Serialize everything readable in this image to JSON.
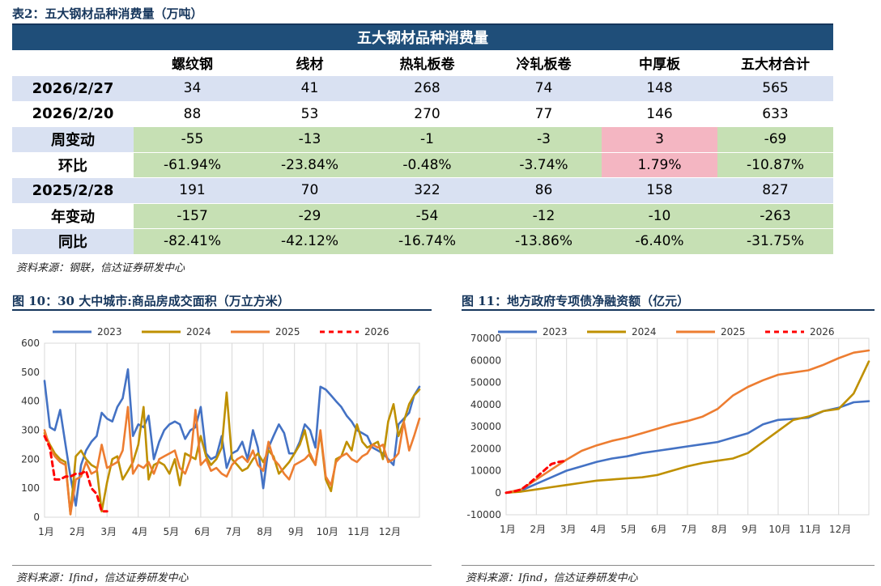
{
  "table": {
    "caption": "表2：五大钢材品种消费量（万吨）",
    "header": "五大钢材品种消费量",
    "columns": [
      "",
      "螺纹钢",
      "线材",
      "热轧板卷",
      "冷轧板卷",
      "中厚板",
      "五大材合计"
    ],
    "rows": [
      {
        "label": "2026/2/27",
        "values": [
          "34",
          "41",
          "268",
          "74",
          "148",
          "565"
        ],
        "fills": [
          "blue",
          "blue",
          "blue",
          "blue",
          "blue",
          "blue",
          "blue"
        ]
      },
      {
        "label": "2026/2/20",
        "values": [
          "88",
          "53",
          "270",
          "77",
          "146",
          "633"
        ],
        "fills": [
          "white",
          "white",
          "white",
          "white",
          "white",
          "white",
          "white"
        ]
      },
      {
        "label": "周变动",
        "values": [
          "-55",
          "-13",
          "-1",
          "-3",
          "3",
          "-69"
        ],
        "fills": [
          "blue",
          "green",
          "green",
          "green",
          "green",
          "pink",
          "green"
        ]
      },
      {
        "label": "环比",
        "values": [
          "-61.94%",
          "-23.84%",
          "-0.48%",
          "-3.74%",
          "1.79%",
          "-10.87%"
        ],
        "fills": [
          "white",
          "green",
          "green",
          "green",
          "green",
          "pink",
          "green"
        ]
      },
      {
        "label": "2025/2/28",
        "values": [
          "191",
          "70",
          "322",
          "86",
          "158",
          "827"
        ],
        "fills": [
          "blue",
          "blue",
          "blue",
          "blue",
          "blue",
          "blue",
          "blue"
        ]
      },
      {
        "label": "年变动",
        "values": [
          "-157",
          "-29",
          "-54",
          "-12",
          "-10",
          "-263"
        ],
        "fills": [
          "white",
          "green",
          "green",
          "green",
          "green",
          "green",
          "green"
        ]
      },
      {
        "label": "同比",
        "values": [
          "-82.41%",
          "-42.12%",
          "-16.74%",
          "-13.86%",
          "-6.40%",
          "-31.75%"
        ],
        "fills": [
          "blue",
          "green",
          "green",
          "green",
          "green",
          "green",
          "green"
        ]
      }
    ],
    "source": "资料来源：钢联，信达证券研发中心"
  },
  "fig10": {
    "caption": "图 10：30 大中城市:商品房成交面积（万立方米）",
    "source": "资料来源：Ifind，信达证券研发中心"
  },
  "fig11": {
    "caption": "图 11：地方政府专项债净融资额（亿元）",
    "source": "资料来源：Ifind，信达证券研发中心"
  },
  "chart_data": [
    {
      "type": "line",
      "title": "",
      "x_labels": [
        "1月",
        "2月",
        "3月",
        "4月",
        "5月",
        "6月",
        "7月",
        "8月",
        "9月",
        "10月",
        "11月",
        "12月"
      ],
      "ylim": [
        0,
        600
      ],
      "yticks": [
        0,
        100,
        200,
        300,
        400,
        500,
        600
      ],
      "legend_position": "top",
      "grid": "vertical",
      "series": [
        {
          "name": "2023",
          "color": "#4472c4",
          "dashed": false,
          "x": [
            0,
            0.17,
            0.33,
            0.5,
            0.67,
            0.83,
            1.0,
            1.17,
            1.33,
            1.5,
            1.67,
            1.83,
            2.0,
            2.17,
            2.33,
            2.5,
            2.67,
            2.83,
            3.0,
            3.17,
            3.33,
            3.5,
            3.67,
            3.83,
            4.0,
            4.17,
            4.33,
            4.5,
            4.67,
            4.83,
            5.0,
            5.17,
            5.33,
            5.5,
            5.67,
            5.83,
            6.0,
            6.17,
            6.33,
            6.5,
            6.67,
            6.83,
            7.0,
            7.17,
            7.33,
            7.5,
            7.67,
            7.83,
            8.0,
            8.17,
            8.33,
            8.5,
            8.67,
            8.83,
            9.0,
            9.17,
            9.33,
            9.5,
            9.67,
            9.83,
            10.0,
            10.17,
            10.33,
            10.5,
            10.67,
            10.83,
            11.0,
            11.17,
            11.33,
            11.5,
            11.67,
            11.83,
            12.0
          ],
          "y": [
            470,
            310,
            300,
            370,
            250,
            140,
            40,
            180,
            230,
            260,
            280,
            360,
            340,
            330,
            380,
            410,
            510,
            280,
            320,
            310,
            350,
            200,
            260,
            300,
            320,
            330,
            320,
            270,
            300,
            310,
            380,
            220,
            200,
            210,
            280,
            170,
            220,
            230,
            260,
            200,
            300,
            240,
            100,
            240,
            280,
            320,
            290,
            220,
            220,
            260,
            320,
            300,
            240,
            450,
            440,
            420,
            400,
            380,
            350,
            330,
            300,
            290,
            280,
            240,
            230,
            220,
            200,
            180,
            320,
            340,
            360,
            420,
            450
          ]
        },
        {
          "name": "2024",
          "color": "#bf9000",
          "dashed": false,
          "x": [
            0,
            0.17,
            0.33,
            0.5,
            0.67,
            0.83,
            1.0,
            1.17,
            1.33,
            1.5,
            1.67,
            1.83,
            2.0,
            2.17,
            2.33,
            2.5,
            2.67,
            2.83,
            3.0,
            3.17,
            3.33,
            3.5,
            3.67,
            3.83,
            4.0,
            4.17,
            4.33,
            4.5,
            4.67,
            4.83,
            5.0,
            5.17,
            5.33,
            5.5,
            5.67,
            5.83,
            6.0,
            6.17,
            6.33,
            6.5,
            6.67,
            6.83,
            7.0,
            7.17,
            7.33,
            7.5,
            7.67,
            7.83,
            8.0,
            8.17,
            8.33,
            8.5,
            8.67,
            8.83,
            9.0,
            9.17,
            9.33,
            9.5,
            9.67,
            9.83,
            10.0,
            10.17,
            10.33,
            10.5,
            10.67,
            10.83,
            11.0,
            11.17,
            11.33,
            11.5,
            11.67,
            11.83,
            12.0
          ],
          "y": [
            290,
            250,
            220,
            200,
            190,
            10,
            210,
            230,
            200,
            180,
            170,
            20,
            120,
            200,
            210,
            130,
            160,
            190,
            250,
            380,
            130,
            180,
            190,
            180,
            150,
            200,
            110,
            220,
            210,
            200,
            280,
            210,
            180,
            200,
            240,
            430,
            200,
            180,
            160,
            170,
            200,
            220,
            190,
            230,
            210,
            150,
            170,
            190,
            220,
            250,
            300,
            210,
            180,
            290,
            130,
            90,
            200,
            210,
            260,
            230,
            320,
            260,
            240,
            250,
            260,
            200,
            330,
            390,
            280,
            330,
            390,
            420,
            440
          ]
        },
        {
          "name": "2025",
          "color": "#ed7d31",
          "dashed": false,
          "x": [
            0,
            0.17,
            0.33,
            0.5,
            0.67,
            0.83,
            1.0,
            1.17,
            1.33,
            1.5,
            1.67,
            1.83,
            2.0,
            2.17,
            2.33,
            2.5,
            2.67,
            2.83,
            3.0,
            3.17,
            3.33,
            3.5,
            3.67,
            3.83,
            4.0,
            4.17,
            4.33,
            4.5,
            4.67,
            4.83,
            5.0,
            5.17,
            5.33,
            5.5,
            5.67,
            5.83,
            6.0,
            6.17,
            6.33,
            6.5,
            6.67,
            6.83,
            7.0,
            7.17,
            7.33,
            7.5,
            7.67,
            7.83,
            8.0,
            8.17,
            8.33,
            8.5,
            8.67,
            8.83,
            9.0,
            9.17,
            9.33,
            9.5,
            9.67,
            9.83,
            10.0,
            10.17,
            10.33,
            10.5,
            10.67,
            10.83,
            11.0,
            11.17,
            11.33,
            11.5,
            11.67,
            11.83,
            12.0
          ],
          "y": [
            300,
            240,
            210,
            190,
            180,
            10,
            130,
            140,
            190,
            150,
            160,
            250,
            170,
            180,
            190,
            230,
            380,
            150,
            180,
            170,
            190,
            150,
            200,
            210,
            220,
            230,
            170,
            150,
            200,
            370,
            180,
            200,
            160,
            170,
            150,
            140,
            180,
            200,
            210,
            190,
            230,
            180,
            160,
            260,
            200,
            180,
            150,
            130,
            180,
            190,
            200,
            220,
            180,
            300,
            140,
            110,
            190,
            210,
            220,
            200,
            190,
            210,
            220,
            250,
            240,
            250,
            190,
            200,
            220,
            330,
            230,
            280,
            340
          ]
        },
        {
          "name": "2026",
          "color": "#ff0000",
          "dashed": true,
          "x": [
            0,
            0.17,
            0.33,
            0.5,
            0.67,
            0.83,
            1.0,
            1.17,
            1.33,
            1.5,
            1.67,
            1.83,
            2.0
          ],
          "y": [
            280,
            240,
            130,
            130,
            140,
            140,
            150,
            150,
            160,
            100,
            80,
            20,
            20
          ]
        }
      ]
    },
    {
      "type": "line",
      "title": "",
      "x_labels": [
        "1月",
        "2月",
        "3月",
        "4月",
        "5月",
        "6月",
        "7月",
        "8月",
        "9月",
        "10月",
        "11月",
        "12月"
      ],
      "ylim": [
        -10000,
        70000
      ],
      "yticks": [
        -10000,
        0,
        10000,
        20000,
        30000,
        40000,
        50000,
        60000,
        70000
      ],
      "legend_position": "top",
      "grid": "vertical",
      "series": [
        {
          "name": "2023",
          "color": "#4472c4",
          "dashed": false,
          "x": [
            0,
            0.5,
            1.0,
            1.5,
            2.0,
            2.5,
            3.0,
            3.5,
            4.0,
            4.5,
            5.0,
            5.5,
            6.0,
            6.5,
            7.0,
            7.5,
            8.0,
            8.5,
            9.0,
            9.5,
            10.0,
            10.5,
            11.0,
            11.5,
            12.0
          ],
          "y": [
            0,
            1000,
            4000,
            7000,
            10000,
            12000,
            14000,
            15500,
            16500,
            18000,
            19000,
            20000,
            21000,
            22000,
            23000,
            25000,
            27000,
            31000,
            33000,
            33500,
            34000,
            37000,
            38500,
            41000,
            41500
          ]
        },
        {
          "name": "2024",
          "color": "#bf9000",
          "dashed": false,
          "x": [
            0,
            0.5,
            1.0,
            1.5,
            2.0,
            2.5,
            3.0,
            3.5,
            4.0,
            4.5,
            5.0,
            5.5,
            6.0,
            6.5,
            7.0,
            7.5,
            8.0,
            8.5,
            9.0,
            9.5,
            10.0,
            10.5,
            11.0,
            11.5,
            12.0
          ],
          "y": [
            0,
            500,
            1500,
            2500,
            3500,
            4500,
            5500,
            6000,
            6500,
            7000,
            8000,
            10000,
            12000,
            13500,
            14500,
            15500,
            18000,
            23000,
            28000,
            33000,
            34500,
            37000,
            38000,
            45000,
            59500
          ]
        },
        {
          "name": "2025",
          "color": "#ed7d31",
          "dashed": false,
          "x": [
            0,
            0.5,
            1.0,
            1.5,
            2.0,
            2.5,
            3.0,
            3.5,
            4.0,
            4.5,
            5.0,
            5.5,
            6.0,
            6.5,
            7.0,
            7.5,
            8.0,
            8.5,
            9.0,
            9.5,
            10.0,
            10.5,
            11.0,
            11.5,
            12.0
          ],
          "y": [
            0,
            1500,
            6000,
            10500,
            15000,
            19000,
            21500,
            23500,
            25000,
            27000,
            29000,
            31000,
            32500,
            34500,
            38000,
            44000,
            48000,
            51000,
            53500,
            54500,
            55500,
            58000,
            61000,
            63500,
            64500
          ]
        },
        {
          "name": "2026",
          "color": "#ff0000",
          "dashed": true,
          "x": [
            0,
            0.25,
            0.5,
            0.75,
            1.0,
            1.25,
            1.5,
            1.75,
            2.0
          ],
          "y": [
            0,
            500,
            1500,
            4000,
            7000,
            10000,
            13000,
            14000,
            14500
          ]
        }
      ]
    }
  ]
}
